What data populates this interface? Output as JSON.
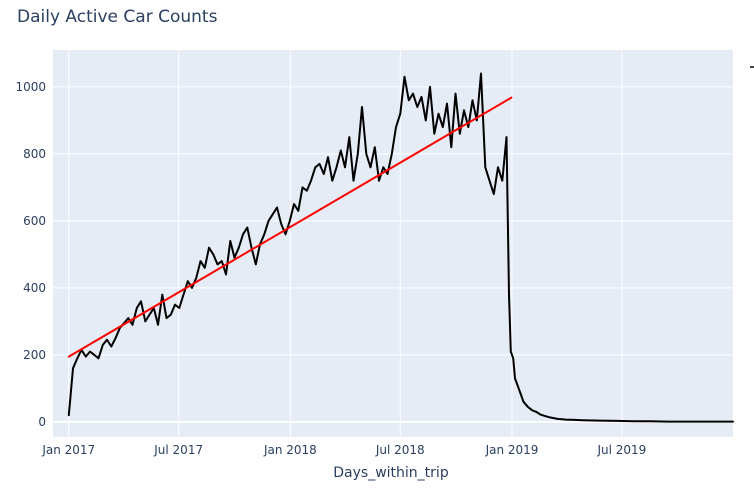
{
  "chart_data": {
    "type": "line",
    "title": "Daily Active Car Counts",
    "xlabel": "Days_within_trip",
    "ylabel": "",
    "x_tick_labels": [
      "Jan 2017",
      "Jul 2017",
      "Jan 2018",
      "Jul 2018",
      "Jan 2019",
      "Jul 2019"
    ],
    "x_tick_dates": [
      "2017-01-01",
      "2017-07-01",
      "2018-01-01",
      "2018-07-01",
      "2019-01-01",
      "2019-07-01"
    ],
    "y_ticks": [
      0,
      200,
      400,
      600,
      800,
      1000
    ],
    "xlim": [
      "2016-12-06",
      "2019-12-31"
    ],
    "ylim": [
      -45,
      1110
    ],
    "grid": true,
    "plot_background": "#e5ecf6",
    "series": [
      {
        "role": "counts",
        "color": "#000000",
        "x": [
          "2017-01-01",
          "2017-01-08",
          "2017-01-15",
          "2017-01-22",
          "2017-01-29",
          "2017-02-05",
          "2017-02-12",
          "2017-02-19",
          "2017-02-26",
          "2017-03-05",
          "2017-03-12",
          "2017-03-19",
          "2017-03-26",
          "2017-04-02",
          "2017-04-09",
          "2017-04-16",
          "2017-04-23",
          "2017-04-30",
          "2017-05-07",
          "2017-05-14",
          "2017-05-21",
          "2017-05-28",
          "2017-06-04",
          "2017-06-11",
          "2017-06-18",
          "2017-06-25",
          "2017-07-02",
          "2017-07-09",
          "2017-07-16",
          "2017-07-23",
          "2017-07-30",
          "2017-08-06",
          "2017-08-13",
          "2017-08-20",
          "2017-08-27",
          "2017-09-03",
          "2017-09-10",
          "2017-09-17",
          "2017-09-24",
          "2017-10-01",
          "2017-10-08",
          "2017-10-15",
          "2017-10-22",
          "2017-10-29",
          "2017-11-05",
          "2017-11-12",
          "2017-11-19",
          "2017-11-26",
          "2017-12-03",
          "2017-12-10",
          "2017-12-17",
          "2017-12-24",
          "2017-12-31",
          "2018-01-07",
          "2018-01-14",
          "2018-01-21",
          "2018-01-28",
          "2018-02-04",
          "2018-02-11",
          "2018-02-18",
          "2018-02-25",
          "2018-03-04",
          "2018-03-11",
          "2018-03-18",
          "2018-03-25",
          "2018-04-01",
          "2018-04-08",
          "2018-04-15",
          "2018-04-22",
          "2018-04-29",
          "2018-05-06",
          "2018-05-13",
          "2018-05-20",
          "2018-05-27",
          "2018-06-03",
          "2018-06-10",
          "2018-06-17",
          "2018-06-24",
          "2018-07-01",
          "2018-07-08",
          "2018-07-15",
          "2018-07-22",
          "2018-07-29",
          "2018-08-05",
          "2018-08-12",
          "2018-08-19",
          "2018-08-26",
          "2018-09-02",
          "2018-09-09",
          "2018-09-16",
          "2018-09-23",
          "2018-09-30",
          "2018-10-07",
          "2018-10-14",
          "2018-10-21",
          "2018-10-28",
          "2018-11-04",
          "2018-11-11",
          "2018-11-18",
          "2018-11-25",
          "2018-12-02",
          "2018-12-09",
          "2018-12-16",
          "2018-12-23",
          "2018-12-27",
          "2018-12-30",
          "2019-01-03",
          "2019-01-06",
          "2019-01-13",
          "2019-01-20",
          "2019-01-27",
          "2019-02-03",
          "2019-02-10",
          "2019-02-17",
          "2019-02-24",
          "2019-03-03",
          "2019-03-17",
          "2019-03-31",
          "2019-04-14",
          "2019-04-28",
          "2019-05-26",
          "2019-06-23",
          "2019-07-21",
          "2019-08-18",
          "2019-09-15",
          "2019-10-13",
          "2019-11-10",
          "2019-12-08",
          "2019-12-31"
        ],
        "y": [
          20,
          160,
          190,
          215,
          195,
          210,
          200,
          190,
          230,
          245,
          225,
          250,
          280,
          295,
          310,
          290,
          340,
          360,
          300,
          320,
          340,
          290,
          380,
          310,
          320,
          350,
          340,
          380,
          420,
          400,
          430,
          480,
          460,
          520,
          500,
          470,
          480,
          440,
          540,
          490,
          520,
          560,
          580,
          520,
          470,
          530,
          560,
          600,
          620,
          640,
          590,
          560,
          600,
          650,
          630,
          700,
          690,
          720,
          760,
          770,
          740,
          790,
          720,
          760,
          810,
          760,
          850,
          720,
          800,
          940,
          800,
          760,
          820,
          720,
          760,
          740,
          800,
          880,
          920,
          1030,
          960,
          980,
          940,
          970,
          900,
          1000,
          860,
          920,
          880,
          950,
          820,
          980,
          860,
          930,
          880,
          960,
          900,
          1040,
          760,
          720,
          680,
          760,
          720,
          850,
          380,
          210,
          190,
          130,
          95,
          60,
          45,
          35,
          30,
          22,
          18,
          14,
          9,
          7,
          6,
          5,
          4,
          3,
          2,
          2,
          1,
          1,
          1,
          1,
          1
        ]
      },
      {
        "role": "trend",
        "color": "#ff0000",
        "x": [
          "2017-01-01",
          "2018-12-31"
        ],
        "y": [
          195,
          968
        ]
      }
    ]
  }
}
